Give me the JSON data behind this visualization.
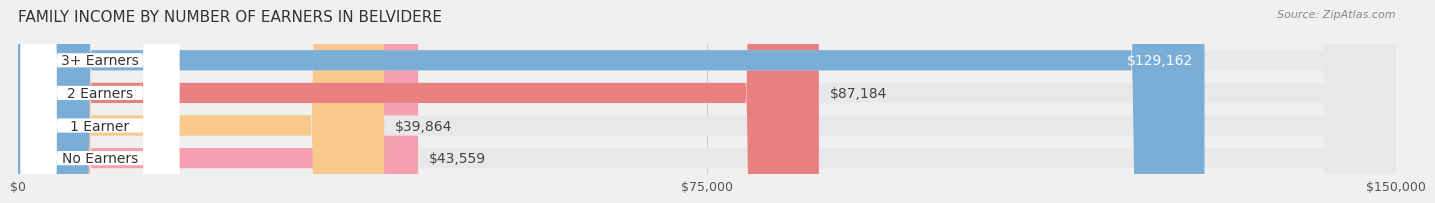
{
  "title": "FAMILY INCOME BY NUMBER OF EARNERS IN BELVIDERE",
  "source": "Source: ZipAtlas.com",
  "categories": [
    "No Earners",
    "1 Earner",
    "2 Earners",
    "3+ Earners"
  ],
  "values": [
    43559,
    39864,
    87184,
    129162
  ],
  "bar_colors": [
    "#f4a0b0",
    "#f8c98a",
    "#e88080",
    "#7aaed6"
  ],
  "label_colors": [
    "#000000",
    "#000000",
    "#000000",
    "#ffffff"
  ],
  "value_labels": [
    "$43,559",
    "$39,864",
    "$87,184",
    "$129,162"
  ],
  "xlim": [
    0,
    150000
  ],
  "xticks": [
    0,
    75000,
    150000
  ],
  "xtick_labels": [
    "$0",
    "$75,000",
    "$150,000"
  ],
  "background_color": "#f0f0f0",
  "bar_background_color": "#e8e8e8",
  "title_fontsize": 11,
  "label_fontsize": 10,
  "value_fontsize": 10
}
